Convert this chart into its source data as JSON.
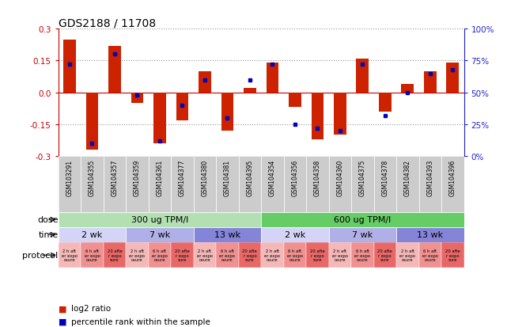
{
  "title": "GDS2188 / 11708",
  "samples": [
    "GSM103291",
    "GSM104355",
    "GSM104357",
    "GSM104359",
    "GSM104361",
    "GSM104377",
    "GSM104380",
    "GSM104381",
    "GSM104395",
    "GSM104354",
    "GSM104356",
    "GSM104358",
    "GSM104360",
    "GSM104375",
    "GSM104378",
    "GSM104382",
    "GSM104393",
    "GSM104396"
  ],
  "log2_ratio": [
    0.25,
    -0.27,
    0.22,
    -0.05,
    -0.24,
    -0.13,
    0.1,
    -0.18,
    0.02,
    0.14,
    -0.07,
    -0.22,
    -0.2,
    0.16,
    -0.09,
    0.04,
    0.1,
    0.14
  ],
  "percentile": [
    72,
    10,
    80,
    48,
    12,
    40,
    60,
    30,
    60,
    72,
    25,
    22,
    20,
    72,
    32,
    50,
    65,
    68
  ],
  "dose_groups": [
    {
      "label": "300 ug TPM/l",
      "start": 0,
      "end": 9,
      "color": "#b2e0b2"
    },
    {
      "label": "600 ug TPM/l",
      "start": 9,
      "end": 18,
      "color": "#66cc66"
    }
  ],
  "time_groups": [
    {
      "label": "2 wk",
      "start": 0,
      "end": 3,
      "color": "#d4d4f7"
    },
    {
      "label": "7 wk",
      "start": 3,
      "end": 6,
      "color": "#b0b0e8"
    },
    {
      "label": "13 wk",
      "start": 6,
      "end": 9,
      "color": "#8484d8"
    },
    {
      "label": "2 wk",
      "start": 9,
      "end": 12,
      "color": "#d4d4f7"
    },
    {
      "label": "7 wk",
      "start": 12,
      "end": 15,
      "color": "#b0b0e8"
    },
    {
      "label": "13 wk",
      "start": 15,
      "end": 18,
      "color": "#8484d8"
    }
  ],
  "protocol_groups": [
    {
      "label": "2 h aft\ner expo\nosure",
      "color": "#f5b8b8"
    },
    {
      "label": "6 h aft\ner expo\nosure",
      "color": "#f09090"
    },
    {
      "label": "20 afte\nr expo\nsure",
      "color": "#e86868"
    }
  ],
  "bar_color": "#cc2200",
  "dot_color": "#0000bb",
  "ylim": [
    -0.3,
    0.3
  ],
  "yticks_left": [
    -0.3,
    -0.15,
    0.0,
    0.15,
    0.3
  ],
  "yticks_right_pct": [
    0,
    25,
    50,
    75,
    100
  ],
  "grid_color": "#999999",
  "bg_color": "#ffffff",
  "label_color_left": "#cc0000",
  "label_color_right": "#2222cc",
  "sample_bg": "#cccccc",
  "bar_width": 0.55
}
